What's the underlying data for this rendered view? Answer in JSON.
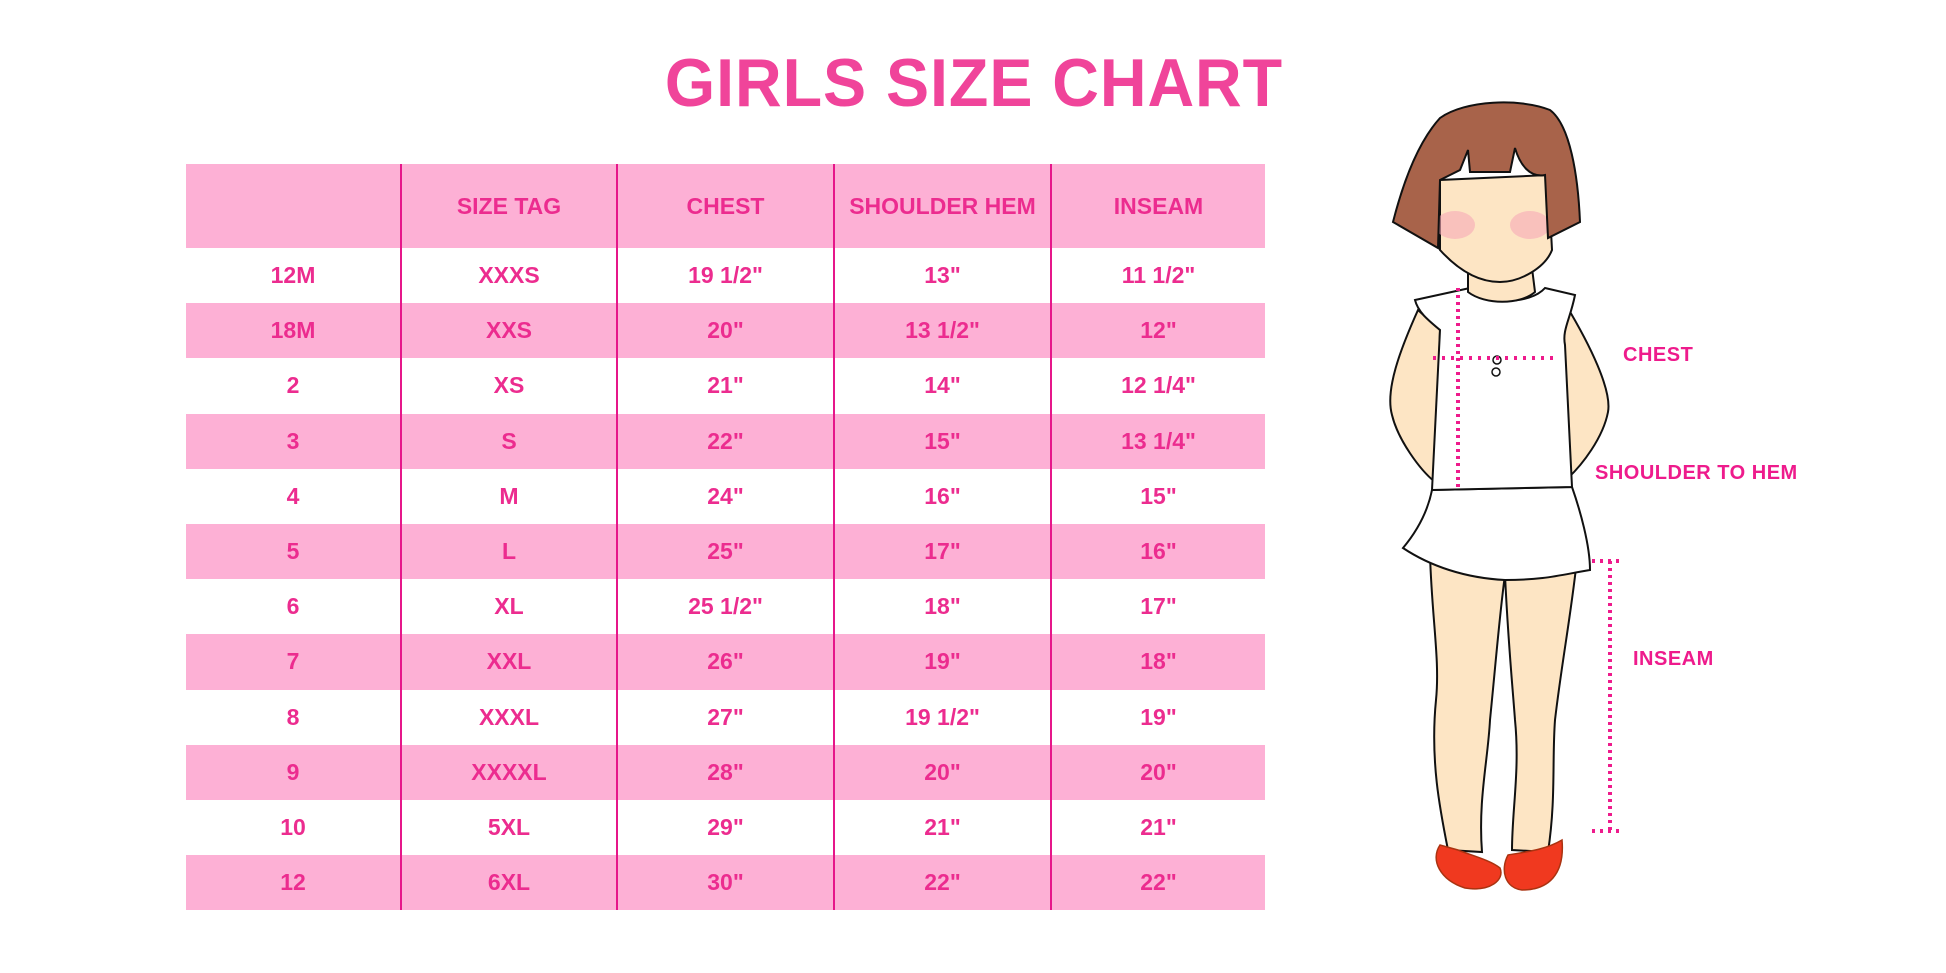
{
  "title": "GIRLS SIZE CHART",
  "table": {
    "headers": [
      "",
      "SIZE TAG",
      "CHEST",
      "SHOULDER HEM",
      "INSEAM"
    ],
    "rows": [
      [
        "12M",
        "XXXS",
        "19 1/2\"",
        "13\"",
        "11 1/2\""
      ],
      [
        "18M",
        "XXS",
        "20\"",
        "13 1/2\"",
        "12\""
      ],
      [
        "2",
        "XS",
        "21\"",
        "14\"",
        "12 1/4\""
      ],
      [
        "3",
        "S",
        "22\"",
        "15\"",
        "13 1/4\""
      ],
      [
        "4",
        "M",
        "24\"",
        "16\"",
        "15\""
      ],
      [
        "5",
        "L",
        "25\"",
        "17\"",
        "16\""
      ],
      [
        "6",
        "XL",
        "25 1/2\"",
        "18\"",
        "17\""
      ],
      [
        "7",
        "XXL",
        "26\"",
        "19\"",
        "18\""
      ],
      [
        "8",
        "XXXL",
        "27\"",
        "19 1/2\"",
        "19\""
      ],
      [
        "9",
        "XXXXL",
        "28\"",
        "20\"",
        "20\""
      ],
      [
        "10",
        "5XL",
        "29\"",
        "21\"",
        "21\""
      ],
      [
        "12",
        "6XL",
        "30\"",
        "22\"",
        "22\""
      ]
    ]
  },
  "diagram": {
    "labels": {
      "chest": "CHEST",
      "shoulder_to_hem": "SHOULDER TO HEM",
      "inseam": "INSEAM"
    }
  },
  "colors": {
    "accent": "#ec2c8f",
    "row_pink": "#fdb0d5",
    "divider": "#e6168a"
  }
}
